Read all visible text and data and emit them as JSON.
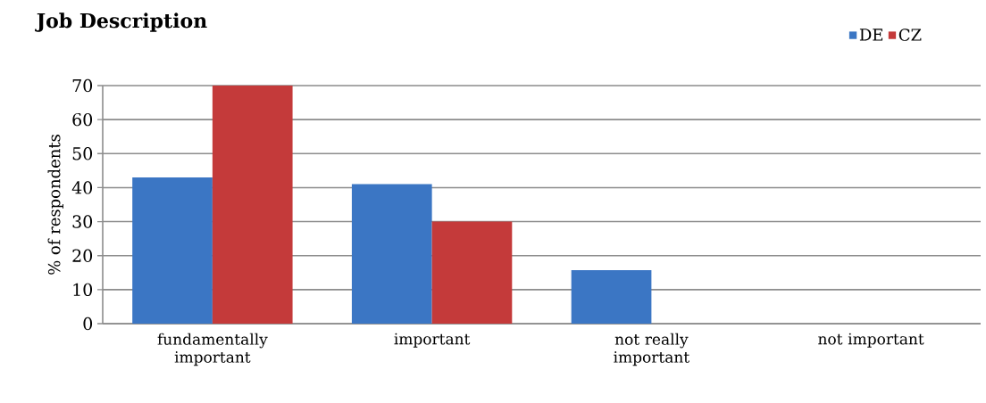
{
  "chart_data": {
    "type": "bar",
    "title": "Job Description",
    "ylabel": "% of respondents",
    "categories": [
      "fundamentally important",
      "important",
      "not really important",
      "not important"
    ],
    "series": [
      {
        "name": "DE",
        "color": "#3b76c4",
        "values": [
          43,
          41,
          15.7,
          0
        ]
      },
      {
        "name": "CZ",
        "color": "#c43a3a",
        "values": [
          70,
          30,
          0,
          0
        ]
      }
    ],
    "ylim": [
      0,
      70
    ],
    "yticks": [
      0,
      10,
      20,
      30,
      40,
      50,
      60,
      70
    ],
    "grid": "y",
    "legend": "top right"
  }
}
